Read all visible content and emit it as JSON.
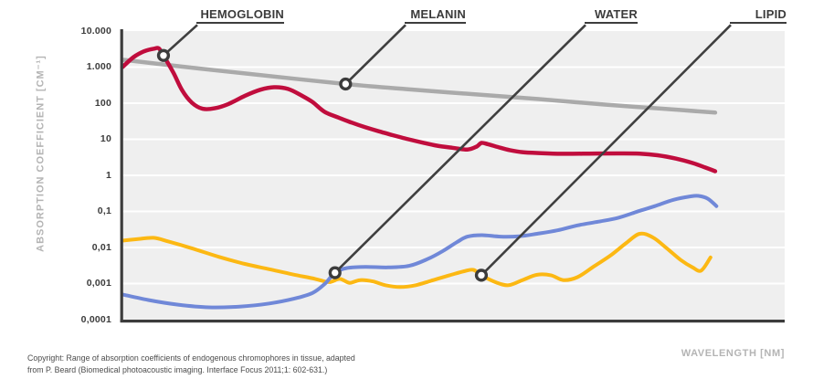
{
  "figure": {
    "y_axis_title": "ABSORPTION COEFFICIENT [CM⁻¹]",
    "x_axis_title": "WAVELENGTH [NM]",
    "copyright_line1": "Copyright: Range of absorption coefficients of endogenous chromophores in tissue, adapted",
    "copyright_line2": "from P. Beard (Biomedical photoacoustic imaging. Interface Focus 2011;1: 602-631.)"
  },
  "colors": {
    "hemoglobin": "#c00d3d",
    "melanin": "#aaaaaa",
    "water": "#7088d8",
    "lipid": "#fcb813",
    "axis": "#3c3c3c",
    "leader": "#3f3f3f",
    "marker_ring": "#3c3c3c",
    "marker_fill": "#ffffff",
    "plot_background": "#efefef",
    "gridline": "#ffffff",
    "tick_text": "#3b3b3b",
    "muted_text": "#b4b4b4",
    "copyright_text": "#4c4c4c"
  },
  "chart_data": {
    "type": "line",
    "title": "",
    "xlabel": "WAVELENGTH [NM]",
    "ylabel": "ABSORPTION COEFFICIENT [CM⁻¹]",
    "y_scale": "log",
    "ylim": [
      0.0001,
      10000
    ],
    "y_tick_labels": [
      "10.000",
      "1.000",
      "100",
      "10",
      "1",
      "0,1",
      "0,01",
      "0,001",
      "0,0001"
    ],
    "y_tick_values": [
      10000,
      1000,
      100,
      10,
      1,
      0.1,
      0.01,
      0.001,
      0.0001
    ],
    "x_tick_labels": [],
    "x_points_unit": "percent of x-axis width (wavelength tick labels not shown in figure)",
    "grid": "horizontal white gridlines on light gray panel",
    "series": [
      {
        "name": "MELANIN",
        "color": "#aaaaaa",
        "marker": {
          "x_pct": 33.7,
          "value": 340
        },
        "points": [
          [
            0,
            1600
          ],
          [
            9.1,
            1030
          ],
          [
            18.8,
            660
          ],
          [
            33.7,
            340
          ],
          [
            43.6,
            240
          ],
          [
            53.2,
            176
          ],
          [
            62.9,
            130
          ],
          [
            72.6,
            92
          ],
          [
            80.8,
            72
          ],
          [
            89.5,
            55
          ]
        ]
      },
      {
        "name": "LIPID",
        "color": "#fcb813",
        "marker": {
          "x_pct": 54.2,
          "value": 0.0017
        },
        "points": [
          [
            0,
            0.0155
          ],
          [
            2.2,
            0.017
          ],
          [
            4.7,
            0.0185
          ],
          [
            7,
            0.0145
          ],
          [
            10.5,
            0.0095
          ],
          [
            14.6,
            0.0055
          ],
          [
            18.5,
            0.0035
          ],
          [
            22.2,
            0.0025
          ],
          [
            25.7,
            0.0018
          ],
          [
            29.1,
            0.00135
          ],
          [
            31.2,
            0.0011
          ],
          [
            32.8,
            0.00135
          ],
          [
            34.3,
            0.00105
          ],
          [
            35.9,
            0.00125
          ],
          [
            37.8,
            0.00115
          ],
          [
            39.7,
            0.0009
          ],
          [
            41.9,
            0.0008
          ],
          [
            44.3,
            0.0009
          ],
          [
            46.6,
            0.0012
          ],
          [
            49.4,
            0.0017
          ],
          [
            51.6,
            0.0022
          ],
          [
            53,
            0.0024
          ],
          [
            54.2,
            0.0017
          ],
          [
            56.3,
            0.0011
          ],
          [
            58.3,
            0.0009
          ],
          [
            60.4,
            0.00125
          ],
          [
            62.6,
            0.00175
          ],
          [
            64.7,
            0.0017
          ],
          [
            66.6,
            0.00125
          ],
          [
            68.7,
            0.0015
          ],
          [
            71.2,
            0.003
          ],
          [
            73.7,
            0.006
          ],
          [
            76,
            0.013
          ],
          [
            78.1,
            0.024
          ],
          [
            80.1,
            0.019
          ],
          [
            82.2,
            0.0095
          ],
          [
            84.3,
            0.0045
          ],
          [
            86.1,
            0.0028
          ],
          [
            87.4,
            0.0023
          ],
          [
            88.8,
            0.0053
          ]
        ]
      },
      {
        "name": "WATER",
        "color": "#7088d8",
        "marker": {
          "x_pct": 32.1,
          "value": 0.002
        },
        "points": [
          [
            0,
            0.0005
          ],
          [
            3.9,
            0.00035
          ],
          [
            8.4,
            0.00026
          ],
          [
            13,
            0.00022
          ],
          [
            17.7,
            0.00023
          ],
          [
            22.2,
            0.00028
          ],
          [
            25.9,
            0.00038
          ],
          [
            28.7,
            0.00055
          ],
          [
            30.6,
            0.001
          ],
          [
            32.1,
            0.002
          ],
          [
            33.9,
            0.0027
          ],
          [
            36.7,
            0.0029
          ],
          [
            40.1,
            0.0028
          ],
          [
            43.3,
            0.0031
          ],
          [
            46.1,
            0.0048
          ],
          [
            48.4,
            0.008
          ],
          [
            50.5,
            0.014
          ],
          [
            52.1,
            0.02
          ],
          [
            54.3,
            0.022
          ],
          [
            57.1,
            0.02
          ],
          [
            59.9,
            0.0205
          ],
          [
            62.6,
            0.024
          ],
          [
            65.7,
            0.03
          ],
          [
            68.7,
            0.041
          ],
          [
            71.9,
            0.052
          ],
          [
            74.9,
            0.067
          ],
          [
            77.7,
            0.098
          ],
          [
            80.4,
            0.14
          ],
          [
            83.2,
            0.21
          ],
          [
            85.7,
            0.26
          ],
          [
            87,
            0.27
          ],
          [
            88.4,
            0.225
          ],
          [
            89.7,
            0.14
          ]
        ]
      },
      {
        "name": "HEMOGLOBIN",
        "color": "#c00d3d",
        "marker": {
          "x_pct": 6.2,
          "value": 2100
        },
        "points": [
          [
            0,
            1000
          ],
          [
            1.7,
            1900
          ],
          [
            3.3,
            2750
          ],
          [
            4.8,
            3250
          ],
          [
            5.5,
            3300
          ],
          [
            6.2,
            2100
          ],
          [
            7.7,
            700
          ],
          [
            9,
            230
          ],
          [
            10.5,
            103
          ],
          [
            12.1,
            70
          ],
          [
            13.9,
            72
          ],
          [
            16,
            95
          ],
          [
            18.5,
            160
          ],
          [
            20.8,
            235
          ],
          [
            22.9,
            278
          ],
          [
            25,
            248
          ],
          [
            27,
            165
          ],
          [
            28.7,
            108
          ],
          [
            30.5,
            58
          ],
          [
            32.6,
            40
          ],
          [
            34.6,
            29
          ],
          [
            36.7,
            21.5
          ],
          [
            38.8,
            16.5
          ],
          [
            40.8,
            13
          ],
          [
            42.9,
            10.3
          ],
          [
            45.2,
            8.2
          ],
          [
            47.4,
            6.7
          ],
          [
            49.8,
            5.8
          ],
          [
            52.1,
            5.2
          ],
          [
            53.5,
            6.3
          ],
          [
            54.2,
            7.9
          ],
          [
            55.2,
            7.3
          ],
          [
            56.7,
            6.1
          ],
          [
            58.5,
            5
          ],
          [
            60.4,
            4.4
          ],
          [
            62.9,
            4.15
          ],
          [
            66.3,
            3.95
          ],
          [
            70.5,
            4
          ],
          [
            74.6,
            4.05
          ],
          [
            78.1,
            4
          ],
          [
            80.8,
            3.6
          ],
          [
            83.6,
            2.9
          ],
          [
            86.1,
            2.2
          ],
          [
            88,
            1.65
          ],
          [
            89.5,
            1.3
          ]
        ]
      }
    ]
  }
}
